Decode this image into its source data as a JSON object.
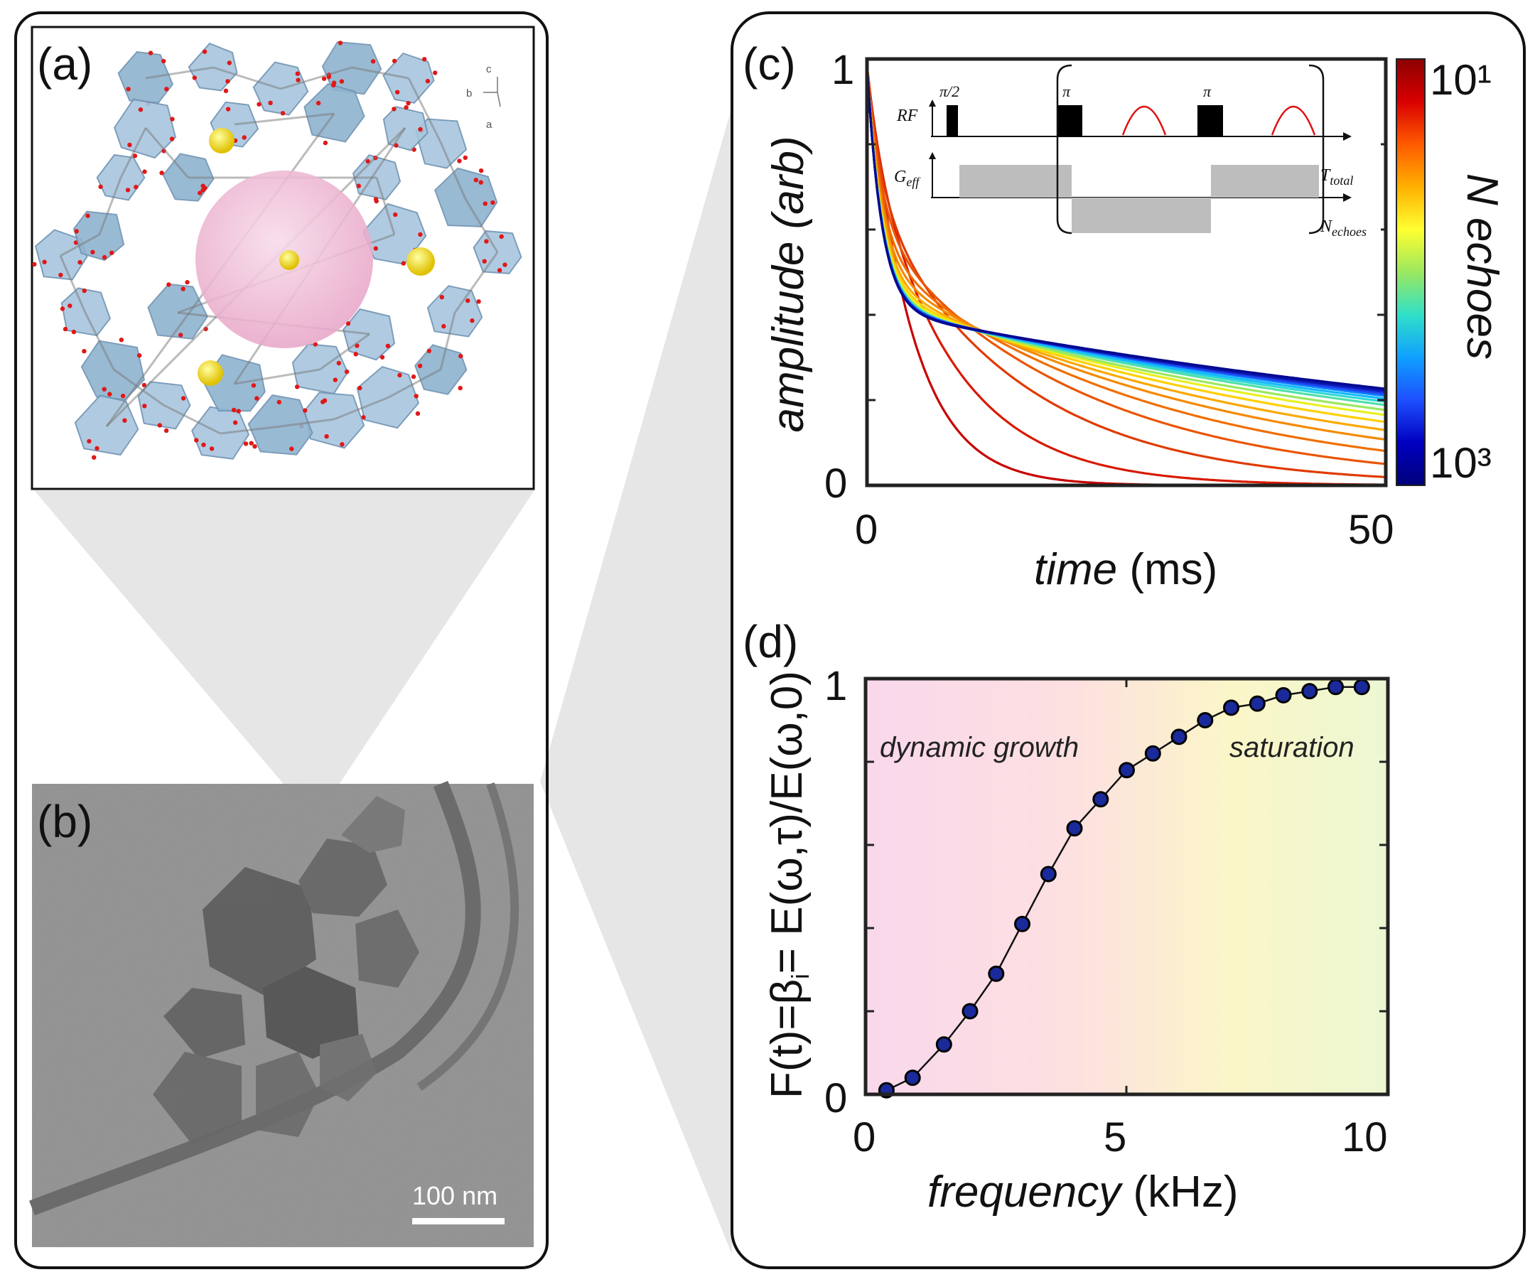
{
  "panels": {
    "a": {
      "label": "(a)",
      "axes_legend": [
        "c",
        "b",
        "a"
      ]
    },
    "b": {
      "label": "(b)",
      "scale_bar": "100 nm"
    },
    "c": {
      "label": "(c)"
    },
    "d": {
      "label": "(d)"
    }
  },
  "chart_data": [
    {
      "id": "c",
      "type": "line",
      "xlabel_italic": "time",
      "xlabel_unit": " (ms)",
      "ylabel": "amplitude (arb)",
      "xlim": [
        0,
        50
      ],
      "ylim": [
        0,
        1
      ],
      "xticks": [
        "0",
        "50"
      ],
      "yticks": [
        "0",
        "1"
      ],
      "colorbar": {
        "label": "N echoes",
        "top": "10¹",
        "bottom": "10³",
        "colors": [
          "#8b0000",
          "#d90000",
          "#ff5a00",
          "#ffb000",
          "#ffff30",
          "#9be85f",
          "#30e0c8",
          "#0fa0ff",
          "#1e50ff",
          "#0000c0",
          "#00007a"
        ]
      },
      "series_model": "y = a0*exp(-t/1.4) + (1-a0)*exp(-t/tau)",
      "series": [
        {
          "color": "#c80000",
          "a0": 0.0,
          "tau": 4.3
        },
        {
          "color": "#d81a00",
          "a0": 0.18,
          "tau": 8
        },
        {
          "color": "#e03a00",
          "a0": 0.3,
          "tau": 14
        },
        {
          "color": "#ea5500",
          "a0": 0.38,
          "tau": 20
        },
        {
          "color": "#f06e00",
          "a0": 0.44,
          "tau": 26
        },
        {
          "color": "#f58a00",
          "a0": 0.48,
          "tau": 32
        },
        {
          "color": "#faa800",
          "a0": 0.51,
          "tau": 38
        },
        {
          "color": "#ffd000",
          "a0": 0.53,
          "tau": 44
        },
        {
          "color": "#e8f020",
          "a0": 0.545,
          "tau": 50
        },
        {
          "color": "#9be85f",
          "a0": 0.555,
          "tau": 55
        },
        {
          "color": "#50e0a8",
          "a0": 0.56,
          "tau": 60
        },
        {
          "color": "#30d8d8",
          "a0": 0.565,
          "tau": 64
        },
        {
          "color": "#14b8ff",
          "a0": 0.57,
          "tau": 68
        },
        {
          "color": "#1090ff",
          "a0": 0.57,
          "tau": 71
        },
        {
          "color": "#1868ff",
          "a0": 0.572,
          "tau": 73
        },
        {
          "color": "#1e48f0",
          "a0": 0.575,
          "tau": 75
        },
        {
          "color": "#1830d8",
          "a0": 0.575,
          "tau": 77
        },
        {
          "color": "#1020c0",
          "a0": 0.578,
          "tau": 79
        },
        {
          "color": "#0a14a8",
          "a0": 0.58,
          "tau": 81
        },
        {
          "color": "#050890",
          "a0": 0.58,
          "tau": 83
        }
      ],
      "inset": {
        "rf_label": "RF",
        "geff_label": "G",
        "geff_sub": "eff",
        "pulse_90": "π/2",
        "pulse_180": "π",
        "ttotal_label": "T",
        "ttotal_sub": "total",
        "nechoes_label": "N",
        "nechoes_sub": "echoes"
      }
    },
    {
      "id": "d",
      "type": "line",
      "xlabel_italic": "frequency",
      "xlabel_unit": " (kHz)",
      "ylabel": "F(t)=β_i= E(ω,τ)/E(ω,0)",
      "ylabel_parts": [
        "F(t)=β",
        "i",
        "= E(ω,τ)/E(ω,0)"
      ],
      "xlim": [
        0,
        10
      ],
      "ylim": [
        0,
        1
      ],
      "xticks": [
        "0",
        "5",
        "10"
      ],
      "yticks": [
        "0",
        "1"
      ],
      "annotations": [
        "dynamic growth",
        "saturation"
      ],
      "background_gradient": [
        "#f9d8ec",
        "#fde0e0",
        "#fbf6c8",
        "#ecf7d2"
      ],
      "marker_color": "#1a2a9a",
      "x": [
        0.4,
        0.9,
        1.5,
        2.0,
        2.5,
        3.0,
        3.5,
        4.0,
        4.5,
        5.0,
        5.5,
        6.0,
        6.5,
        7.0,
        7.5,
        8.0,
        8.5,
        9.0,
        9.5
      ],
      "y": [
        0.01,
        0.04,
        0.12,
        0.2,
        0.29,
        0.41,
        0.53,
        0.64,
        0.71,
        0.78,
        0.82,
        0.86,
        0.9,
        0.93,
        0.94,
        0.96,
        0.97,
        0.98,
        0.98
      ]
    }
  ]
}
